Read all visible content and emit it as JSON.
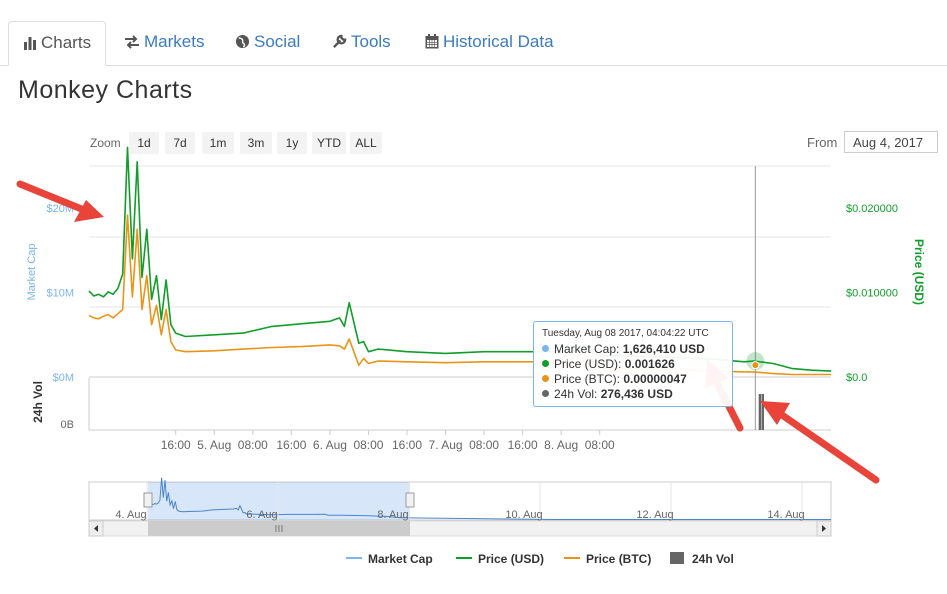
{
  "tabs": [
    {
      "label": "Charts",
      "icon": "bar-chart-icon",
      "active": true
    },
    {
      "label": "Markets",
      "icon": "exchange-icon"
    },
    {
      "label": "Social",
      "icon": "globe-icon"
    },
    {
      "label": "Tools",
      "icon": "wrench-icon"
    },
    {
      "label": "Historical Data",
      "icon": "calendar-icon"
    }
  ],
  "page_title": "Monkey Charts",
  "zoom": {
    "label": "Zoom",
    "buttons": [
      "1d",
      "7d",
      "1m",
      "3m",
      "1y",
      "YTD",
      "ALL"
    ]
  },
  "range": {
    "from_label": "From",
    "from_value": "Aug 4, 2017"
  },
  "colors": {
    "market_cap": "#7cb5ec",
    "price_usd": "#119d2a",
    "price_btc": "#ea9417",
    "volume": "#666666",
    "arrow": "#e8443a",
    "navigator": "#4a86c8"
  },
  "chart_data": {
    "type": "line",
    "title": "",
    "left_axis_label": "Market Cap",
    "right_axis_label": "Price (USD)",
    "volume_axis_label": "24h Vol",
    "left_ticks": [
      "$0M",
      "$10M",
      "$20M"
    ],
    "right_ticks": [
      "$0.0",
      "$0.010000",
      "$0.020000"
    ],
    "volume_ticks": [
      "0B"
    ],
    "x_ticks": [
      "16:00",
      "5. Aug",
      "08:00",
      "16:00",
      "6. Aug",
      "08:00",
      "16:00",
      "7. Aug",
      "08:00",
      "16:00",
      "8. Aug",
      "08:00"
    ],
    "x_range_hours": [
      -26,
      128
    ],
    "y_price_usd_range": [
      0,
      0.025
    ],
    "series": [
      {
        "name": "Price (USD)",
        "points": [
          [
            -26,
            0.0102
          ],
          [
            -25,
            0.0096
          ],
          [
            -24,
            0.0098
          ],
          [
            -23,
            0.0095
          ],
          [
            -22,
            0.0101
          ],
          [
            -21,
            0.0098
          ],
          [
            -20,
            0.0105
          ],
          [
            -19,
            0.0122
          ],
          [
            -18,
            0.0272
          ],
          [
            -17,
            0.014
          ],
          [
            -16,
            0.0255
          ],
          [
            -15,
            0.0118
          ],
          [
            -14,
            0.0175
          ],
          [
            -13,
            0.0092
          ],
          [
            -12,
            0.012
          ],
          [
            -11,
            0.0068
          ],
          [
            -10,
            0.0115
          ],
          [
            -9,
            0.0062
          ],
          [
            -8,
            0.0052
          ],
          [
            -6,
            0.0048
          ],
          [
            0,
            0.005
          ],
          [
            6,
            0.0052
          ],
          [
            12,
            0.006
          ],
          [
            18,
            0.0063
          ],
          [
            24,
            0.0066
          ],
          [
            26,
            0.007
          ],
          [
            27,
            0.006
          ],
          [
            28,
            0.0088
          ],
          [
            30,
            0.004
          ],
          [
            31,
            0.0042
          ],
          [
            32,
            0.003
          ],
          [
            34,
            0.0033
          ],
          [
            40,
            0.003
          ],
          [
            48,
            0.0028
          ],
          [
            56,
            0.003
          ],
          [
            64,
            0.003
          ],
          [
            72,
            0.003
          ],
          [
            78,
            0.0031
          ],
          [
            80,
            0.0025
          ],
          [
            88,
            0.0025
          ],
          [
            96,
            0.0023
          ],
          [
            104,
            0.0021
          ],
          [
            110,
            0.0018
          ],
          [
            112,
            0.0019
          ],
          [
            116,
            0.0016
          ],
          [
            120,
            0.001
          ],
          [
            124,
            0.0008
          ],
          [
            128,
            0.0007
          ]
        ]
      },
      {
        "name": "Price (BTC)",
        "points": [
          [
            -26,
            0.0073
          ],
          [
            -25,
            0.007
          ],
          [
            -24,
            0.0069
          ],
          [
            -23,
            0.0072
          ],
          [
            -22,
            0.0074
          ],
          [
            -21,
            0.007
          ],
          [
            -20,
            0.0075
          ],
          [
            -19,
            0.008
          ],
          [
            -18,
            0.0192
          ],
          [
            -17,
            0.0095
          ],
          [
            -16,
            0.0175
          ],
          [
            -15,
            0.008
          ],
          [
            -14,
            0.012
          ],
          [
            -13,
            0.0062
          ],
          [
            -12,
            0.0085
          ],
          [
            -11,
            0.005
          ],
          [
            -10,
            0.008
          ],
          [
            -9,
            0.0042
          ],
          [
            -8,
            0.0032
          ],
          [
            -6,
            0.003
          ],
          [
            0,
            0.0031
          ],
          [
            6,
            0.0033
          ],
          [
            12,
            0.0035
          ],
          [
            18,
            0.0036
          ],
          [
            24,
            0.0038
          ],
          [
            26,
            0.0037
          ],
          [
            27,
            0.0033
          ],
          [
            28,
            0.0045
          ],
          [
            30,
            0.0014
          ],
          [
            31,
            0.0022
          ],
          [
            32,
            0.0016
          ],
          [
            34,
            0.0019
          ],
          [
            40,
            0.0018
          ],
          [
            48,
            0.0017
          ],
          [
            56,
            0.0018
          ],
          [
            64,
            0.0018
          ],
          [
            72,
            0.0018
          ],
          [
            78,
            0.0018
          ],
          [
            80,
            0.001
          ],
          [
            88,
            0.001
          ],
          [
            96,
            0.0009
          ],
          [
            104,
            0.0007
          ],
          [
            110,
            0.0006
          ],
          [
            112,
            0.0006
          ],
          [
            116,
            0.0004
          ],
          [
            120,
            0.0003
          ],
          [
            124,
            0.0003
          ],
          [
            128,
            0.0003
          ]
        ]
      }
    ],
    "volume_bars_hours": [
      113.2,
      113.8
    ],
    "crosshair_hour": 112.3,
    "tooltip": {
      "header": "Tuesday, Aug 08 2017, 04:04:22 UTC",
      "rows": [
        {
          "label": "Market Cap:",
          "value": "1,626,410 USD",
          "color": "#7cb5ec"
        },
        {
          "label": "Price (USD):",
          "value": "0.001626",
          "color": "#119d2a"
        },
        {
          "label": "Price (BTC):",
          "value": "0.00000047",
          "color": "#ea9417"
        },
        {
          "label": "24h Vol:",
          "value": "276,436 USD",
          "color": "#666666"
        }
      ]
    },
    "navigator_ticks": [
      "4. Aug",
      "6. Aug",
      "8. Aug",
      "10. Aug",
      "12. Aug",
      "14. Aug"
    ],
    "legend": [
      {
        "name": "Market Cap",
        "kind": "line",
        "color": "#7cb5ec"
      },
      {
        "name": "Price (USD)",
        "kind": "line",
        "color": "#119d2a"
      },
      {
        "name": "Price (BTC)",
        "kind": "line",
        "color": "#ea9417"
      },
      {
        "name": "24h Vol",
        "kind": "box",
        "color": "#666666"
      }
    ]
  }
}
